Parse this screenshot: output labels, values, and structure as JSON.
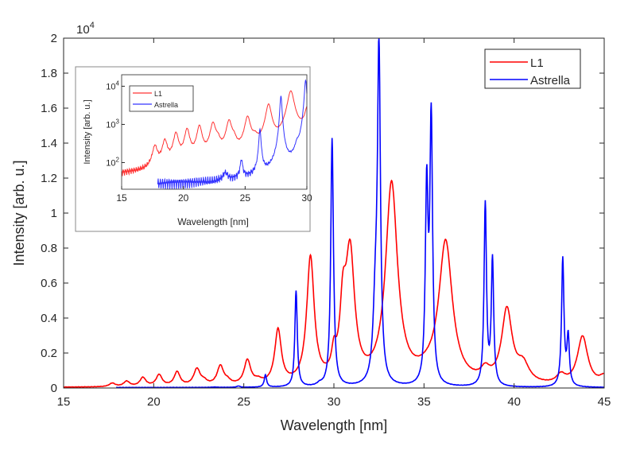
{
  "chart_data": [
    {
      "type": "line",
      "xlabel": "Wavelength [nm]",
      "ylabel": "Intensity [arb. u.]",
      "y_exponent_label": "10",
      "y_exponent_power": "4",
      "xlim": [
        15,
        45
      ],
      "ylim": [
        0,
        2
      ],
      "y_scale_factor": 10000,
      "xticks": [
        "15",
        "20",
        "25",
        "30",
        "35",
        "40",
        "45"
      ],
      "yticks": [
        "0",
        "0.2",
        "0.4",
        "0.6",
        "0.8",
        "1",
        "1.2",
        "1.4",
        "1.6",
        "1.8",
        "2"
      ],
      "grid": false,
      "legend": "top-right",
      "series": [
        {
          "name": "L1",
          "color": "#ff0000",
          "baseline": 0.003,
          "start": 15,
          "peaks": [
            [
              17.7,
              0.02,
              0.2
            ],
            [
              18.5,
              0.03,
              0.2
            ],
            [
              19.4,
              0.05,
              0.2
            ],
            [
              20.3,
              0.065,
              0.2
            ],
            [
              21.3,
              0.08,
              0.2
            ],
            [
              22.4,
              0.095,
              0.22
            ],
            [
              22.8,
              0.02,
              0.2
            ],
            [
              23.7,
              0.11,
              0.22
            ],
            [
              24.1,
              0.02,
              0.2
            ],
            [
              25.2,
              0.14,
              0.22
            ],
            [
              25.8,
              0.02,
              0.25
            ],
            [
              26.9,
              0.31,
              0.22
            ],
            [
              28.7,
              0.72,
              0.25
            ],
            [
              30.0,
              0.12,
              0.15
            ],
            [
              30.5,
              0.35,
              0.2
            ],
            [
              30.9,
              0.72,
              0.3
            ],
            [
              33.2,
              1.14,
              0.4
            ],
            [
              35.2,
              0.04,
              0.8
            ],
            [
              36.2,
              0.8,
              0.45
            ],
            [
              38.4,
              0.06,
              0.3
            ],
            [
              39.6,
              0.42,
              0.35
            ],
            [
              40.5,
              0.1,
              0.4
            ],
            [
              42.6,
              0.05,
              0.3
            ],
            [
              43.8,
              0.28,
              0.35
            ],
            [
              45.0,
              0.05,
              0.3
            ]
          ]
        },
        {
          "name": "Astrella",
          "color": "#0000ff",
          "baseline": 0.0025,
          "start": 17.9,
          "peaks": [
            [
              23.4,
              0.002,
              0.2
            ],
            [
              24.7,
              0.008,
              0.1
            ],
            [
              26.2,
              0.07,
              0.08
            ],
            [
              27.9,
              0.55,
              0.08
            ],
            [
              29.2,
              0.012,
              0.15
            ],
            [
              29.9,
              1.42,
              0.09
            ],
            [
              32.5,
              1.88,
              0.1
            ],
            [
              32.3,
              0.4,
              0.15
            ],
            [
              35.15,
              1.1,
              0.09
            ],
            [
              35.4,
              1.5,
              0.09
            ],
            [
              38.4,
              1.04,
              0.08
            ],
            [
              38.8,
              0.72,
              0.08
            ],
            [
              42.7,
              0.73,
              0.08
            ],
            [
              43.0,
              0.28,
              0.08
            ]
          ]
        }
      ]
    },
    {
      "type": "line",
      "inset": true,
      "xlabel": "Wavelength [nm]",
      "ylabel": "Intensity [arb. u.]",
      "xlim": [
        15,
        30
      ],
      "ylim": [
        20,
        20000
      ],
      "yscale": "log",
      "xticks": [
        "15",
        "20",
        "25",
        "30"
      ],
      "yticks": [
        {
          "base": "10",
          "exp": "2"
        },
        {
          "base": "10",
          "exp": "3"
        },
        {
          "base": "10",
          "exp": "4"
        }
      ],
      "legend": "top-left",
      "series_names": [
        "L1",
        "Astrella"
      ]
    }
  ]
}
